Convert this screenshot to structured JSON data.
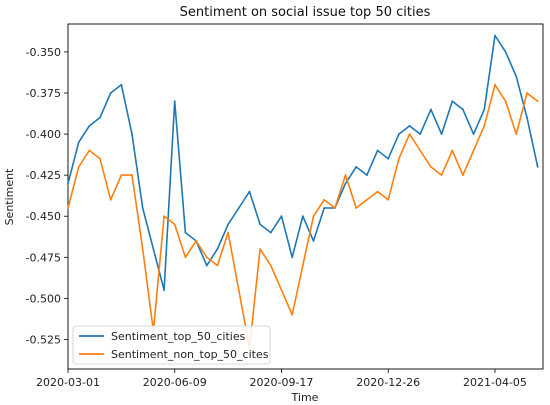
{
  "chart_data": {
    "type": "line",
    "title": "Sentiment on social issue top 50 cities",
    "xlabel": "Time",
    "ylabel": "Sentiment",
    "x_ticks": [
      "2020-03-01",
      "2020-06-09",
      "2020-09-17",
      "2020-12-26",
      "2021-04-05"
    ],
    "y_ticks": [
      "-0.350",
      "-0.375",
      "-0.400",
      "-0.425",
      "-0.450",
      "-0.475",
      "-0.500",
      "-0.525"
    ],
    "x_range": [
      "2020-03-01",
      "2021-05-20"
    ],
    "ylim": [
      -0.543,
      -0.333
    ],
    "grid": false,
    "legend_position": "lower-left",
    "x": [
      "2020-03-01",
      "2020-03-11",
      "2020-03-21",
      "2020-03-31",
      "2020-04-10",
      "2020-04-20",
      "2020-04-30",
      "2020-05-10",
      "2020-05-20",
      "2020-05-30",
      "2020-06-09",
      "2020-06-19",
      "2020-06-29",
      "2020-07-09",
      "2020-07-19",
      "2020-07-29",
      "2020-08-08",
      "2020-08-18",
      "2020-08-28",
      "2020-09-07",
      "2020-09-17",
      "2020-09-27",
      "2020-10-07",
      "2020-10-17",
      "2020-10-27",
      "2020-11-06",
      "2020-11-16",
      "2020-11-26",
      "2020-12-06",
      "2020-12-16",
      "2020-12-26",
      "2021-01-05",
      "2021-01-15",
      "2021-01-25",
      "2021-02-04",
      "2021-02-14",
      "2021-02-24",
      "2021-03-06",
      "2021-03-16",
      "2021-03-26",
      "2021-04-05",
      "2021-04-15",
      "2021-04-25",
      "2021-05-05",
      "2021-05-15"
    ],
    "series": [
      {
        "name": "Sentiment_top_50_cities",
        "color": "#1f77b4",
        "values": [
          -0.43,
          -0.405,
          -0.395,
          -0.39,
          -0.375,
          -0.37,
          -0.4,
          -0.445,
          -0.47,
          -0.495,
          -0.38,
          -0.46,
          -0.465,
          -0.48,
          -0.47,
          -0.455,
          -0.445,
          -0.435,
          -0.455,
          -0.46,
          -0.45,
          -0.475,
          -0.45,
          -0.465,
          -0.445,
          -0.445,
          -0.43,
          -0.42,
          -0.425,
          -0.41,
          -0.415,
          -0.4,
          -0.395,
          -0.4,
          -0.385,
          -0.4,
          -0.38,
          -0.385,
          -0.4,
          -0.385,
          -0.34,
          -0.35,
          -0.365,
          -0.39,
          -0.42
        ]
      },
      {
        "name": "Sentiment_non_top_50_cites",
        "color": "#ff7f0e",
        "values": [
          -0.445,
          -0.42,
          -0.41,
          -0.415,
          -0.44,
          -0.425,
          -0.425,
          -0.47,
          -0.52,
          -0.45,
          -0.455,
          -0.475,
          -0.465,
          -0.475,
          -0.48,
          -0.46,
          -0.495,
          -0.53,
          -0.47,
          -0.48,
          -0.495,
          -0.51,
          -0.48,
          -0.45,
          -0.44,
          -0.445,
          -0.425,
          -0.445,
          -0.44,
          -0.435,
          -0.44,
          -0.415,
          -0.4,
          -0.41,
          -0.42,
          -0.425,
          -0.41,
          -0.425,
          -0.41,
          -0.395,
          -0.37,
          -0.38,
          -0.4,
          -0.375,
          -0.38
        ]
      }
    ]
  }
}
